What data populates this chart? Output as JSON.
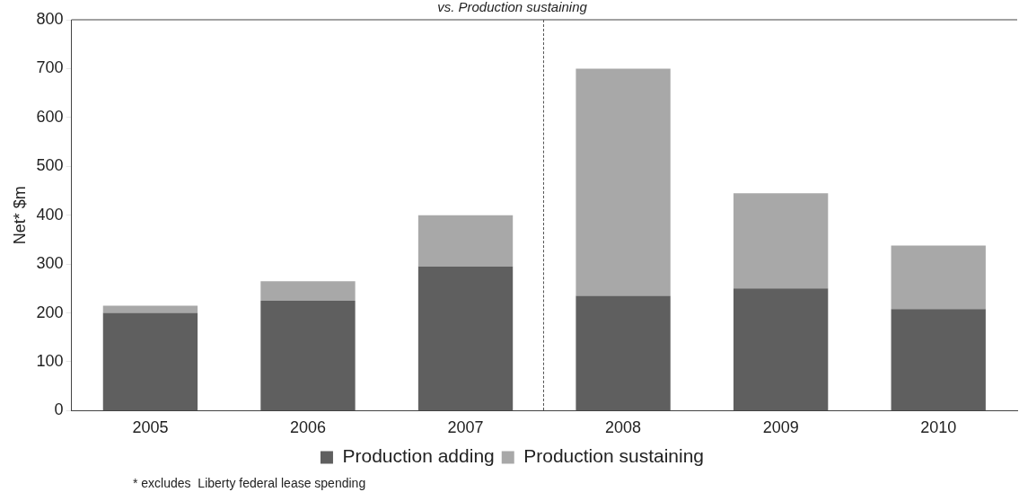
{
  "chart_data": {
    "type": "bar",
    "title": "vs. Production sustaining",
    "ylabel": "Net* $m",
    "stacked": true,
    "categories": [
      "2005",
      "2006",
      "2007",
      "2008",
      "2009",
      "2010"
    ],
    "series": [
      {
        "name": "Production adding",
        "color": "#5f5f5f",
        "values": [
          200,
          225,
          295,
          235,
          250,
          208
        ]
      },
      {
        "name": "Production sustaining",
        "color": "#a8a8a8",
        "values": [
          15,
          40,
          105,
          465,
          195,
          130
        ]
      }
    ],
    "ylim": [
      0,
      800
    ],
    "yticks": [
      0,
      100,
      200,
      300,
      400,
      500,
      600,
      700,
      800
    ],
    "grid": false,
    "legend": "bottom",
    "annotations": [
      "* excludes  Liberty federal lease spending"
    ]
  }
}
